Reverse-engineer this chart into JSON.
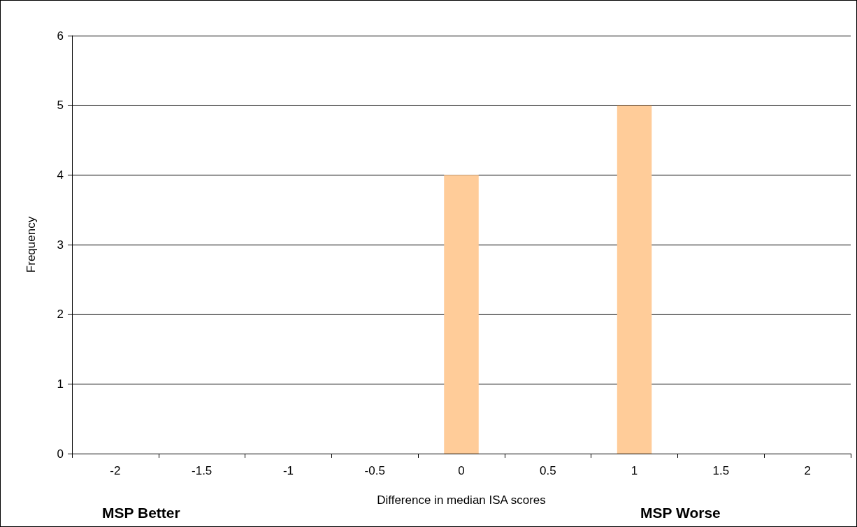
{
  "chart_data": {
    "type": "bar",
    "xlabel": "Difference in median ISA scores",
    "ylabel": "Frequency",
    "categories": [
      "-2",
      "-1.5",
      "-1",
      "-0.5",
      "0",
      "0.5",
      "1",
      "1.5",
      "2"
    ],
    "values": [
      0,
      0,
      0,
      0,
      4,
      0,
      5,
      0,
      0
    ],
    "color": "#ffcc99",
    "ylim": [
      0,
      6
    ],
    "yticks": [
      0,
      1,
      2,
      3,
      4,
      5,
      6
    ],
    "grid": "y",
    "annotations": [
      "MSP Better",
      "MSP Worse"
    ]
  }
}
